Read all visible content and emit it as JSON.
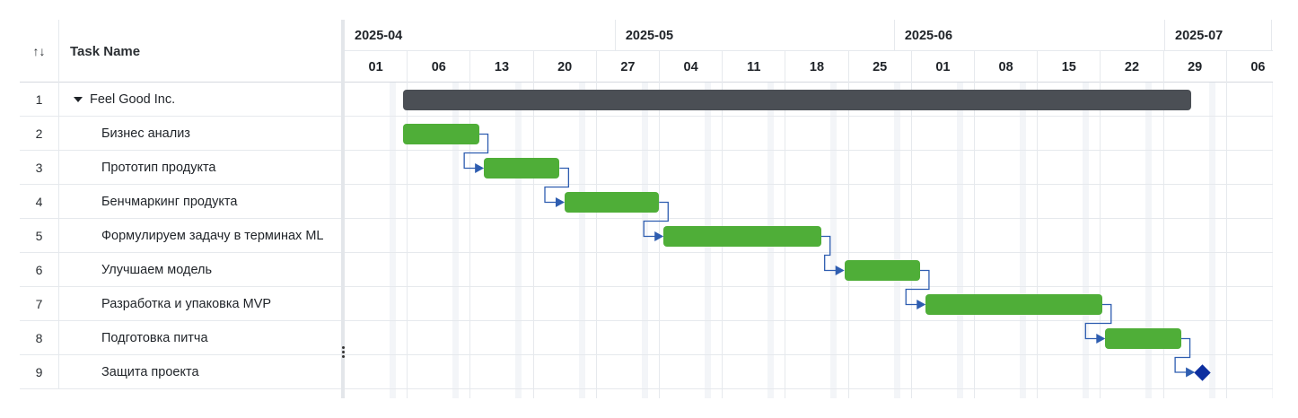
{
  "grid": {
    "sort_icon": "sort-icon",
    "sort_label": "↑↓",
    "task_name_header": "Task Name",
    "rows": [
      {
        "num": "1",
        "name": "Feel Good Inc.",
        "type": "project",
        "indent": 0
      },
      {
        "num": "2",
        "name": "Бизнес анализ",
        "type": "task",
        "indent": 1
      },
      {
        "num": "3",
        "name": "Прототип продукта",
        "type": "task",
        "indent": 1
      },
      {
        "num": "4",
        "name": "Бенчмаркинг продукта",
        "type": "task",
        "indent": 1
      },
      {
        "num": "5",
        "name": "Формулируем задачу в терминах ML",
        "type": "task",
        "indent": 1
      },
      {
        "num": "6",
        "name": "Улучшаем модель",
        "type": "task",
        "indent": 1
      },
      {
        "num": "7",
        "name": "Разработка и упаковка MVP",
        "type": "task",
        "indent": 1
      },
      {
        "num": "8",
        "name": "Подготовка питча",
        "type": "task",
        "indent": 1
      },
      {
        "num": "9",
        "name": "Защита проекта",
        "type": "milestone",
        "indent": 1
      }
    ]
  },
  "timeline": {
    "months": [
      {
        "label": "2025-04",
        "start_week": 0,
        "weeks": 4.3
      },
      {
        "label": "2025-05",
        "start_week": 4.3,
        "weeks": 4.43
      },
      {
        "label": "2025-06",
        "start_week": 8.73,
        "weeks": 4.29
      },
      {
        "label": "2025-07",
        "start_week": 13.02,
        "weeks": 1.7
      }
    ],
    "weeks": [
      "01",
      "06",
      "13",
      "20",
      "27",
      "04",
      "11",
      "18",
      "25",
      "01",
      "08",
      "15",
      "22",
      "29",
      "06"
    ],
    "bars": [
      {
        "row": 0,
        "type": "project",
        "start_week": 0.93,
        "duration_weeks": 12.5
      },
      {
        "row": 1,
        "type": "task",
        "start_week": 0.93,
        "duration_weeks": 1.2
      },
      {
        "row": 2,
        "type": "task",
        "start_week": 2.21,
        "duration_weeks": 1.2
      },
      {
        "row": 3,
        "type": "task",
        "start_week": 3.49,
        "duration_weeks": 1.5
      },
      {
        "row": 4,
        "type": "task",
        "start_week": 5.06,
        "duration_weeks": 2.5
      },
      {
        "row": 5,
        "type": "task",
        "start_week": 7.93,
        "duration_weeks": 1.2
      },
      {
        "row": 6,
        "type": "task",
        "start_week": 9.22,
        "duration_weeks": 2.8
      },
      {
        "row": 7,
        "type": "task",
        "start_week": 12.07,
        "duration_weeks": 1.2
      },
      {
        "row": 8,
        "type": "milestone",
        "start_week": 13.52
      }
    ],
    "links": [
      [
        1,
        2
      ],
      [
        2,
        3
      ],
      [
        3,
        4
      ],
      [
        4,
        5
      ],
      [
        5,
        6
      ],
      [
        6,
        7
      ],
      [
        7,
        8
      ]
    ],
    "colors": {
      "task": "#4fae38",
      "project": "#4b4f55",
      "milestone": "#0d2fa0",
      "link": "#2e5db0"
    }
  }
}
